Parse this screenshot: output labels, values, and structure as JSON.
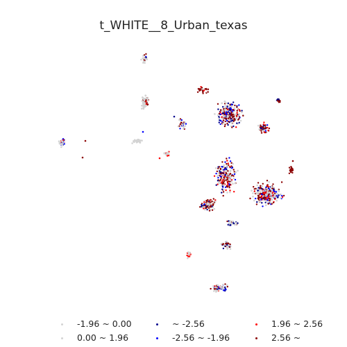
{
  "title": "t_WHITE__8_Urban_texas",
  "legend": [
    {
      "label": "-1.96 ~ 0.00",
      "color": "#d3d3d3"
    },
    {
      "label": "0.00 ~ 1.96",
      "color": "#d3d3d3"
    },
    {
      "label": "~ -2.56",
      "color": "#00008b"
    },
    {
      "label": "-2.56 ~ -1.96",
      "color": "#0000ff"
    },
    {
      "label": "1.96 ~ 2.56",
      "color": "#ff0000"
    },
    {
      "label": "2.56 ~",
      "color": "#8b0000"
    }
  ],
  "colors": {
    "not_significant": "#d3d3d3",
    "cold_99": "#00008b",
    "cold_95": "#0000ff",
    "hot_95": "#ff0000",
    "hot_99": "#8b0000"
  }
}
